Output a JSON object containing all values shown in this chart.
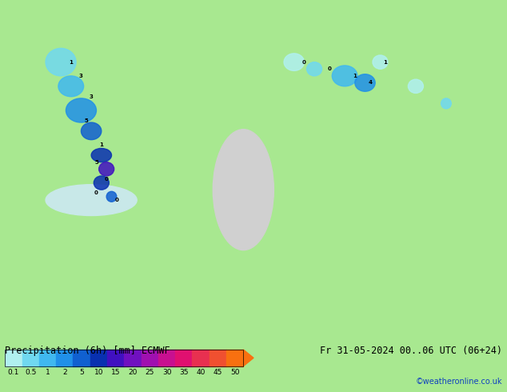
{
  "title_left": "Precipitation (6h) [mm] ECMWF",
  "title_right": "Fr 31-05-2024 00..06 UTC (06+24)",
  "credit": "©weatheronline.co.uk",
  "colorbar_levels": [
    0.1,
    0.5,
    1,
    2,
    5,
    10,
    15,
    20,
    25,
    30,
    35,
    40,
    45,
    50
  ],
  "colorbar_colors": [
    "#b0f0f0",
    "#70d8f0",
    "#40b8f0",
    "#2090e8",
    "#1060d0",
    "#0830b0",
    "#4010c0",
    "#7010c0",
    "#a010b0",
    "#c81090",
    "#e01070",
    "#e83050",
    "#f05030",
    "#f87010"
  ],
  "background_color": "#a8e890",
  "map_bg": "#a8e890",
  "land_color": "#a8e890",
  "sea_color": "#c8f0c8",
  "fig_width": 6.34,
  "fig_height": 4.9,
  "dpi": 100
}
